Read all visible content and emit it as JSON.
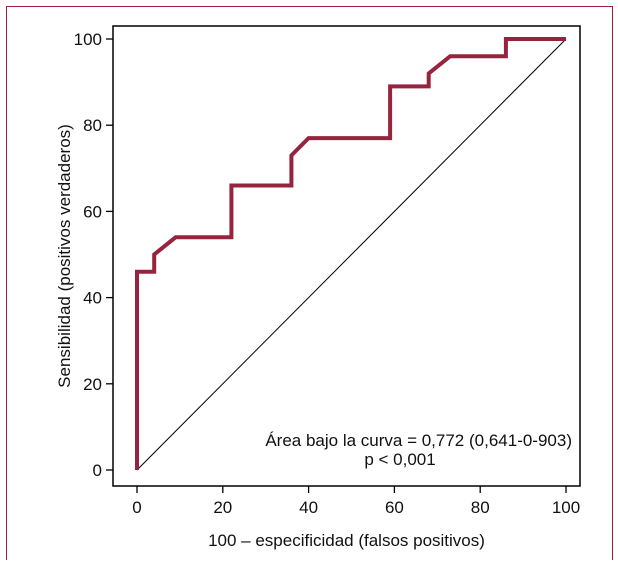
{
  "chart_data": {
    "type": "line",
    "xlabel": "100 – especificidad (falsos positivos)",
    "ylabel": "Sensibilidad (positivos verdaderos)",
    "xlim": [
      0,
      100
    ],
    "ylim": [
      0,
      100
    ],
    "xticks": [
      "0",
      "20",
      "40",
      "60",
      "80",
      "100"
    ],
    "yticks": [
      "0",
      "20",
      "40",
      "60",
      "80",
      "100"
    ],
    "grid": false,
    "series": [
      {
        "color": "#96243f",
        "x": [
          0,
          0,
          4,
          4,
          9,
          22,
          22,
          36,
          36,
          40,
          59,
          59,
          68,
          68,
          73,
          86,
          86,
          100
        ],
        "y": [
          0,
          46,
          46,
          50,
          54,
          54,
          66,
          66,
          73,
          77,
          77,
          89,
          89,
          92,
          96,
          96,
          100,
          100
        ]
      },
      {
        "color": "#000000",
        "x": [
          0,
          100
        ],
        "y": [
          0,
          100
        ]
      }
    ],
    "annotations": [
      "Área bajo la curva = 0,772 (0,641-0-903)",
      "p < 0,001"
    ]
  }
}
